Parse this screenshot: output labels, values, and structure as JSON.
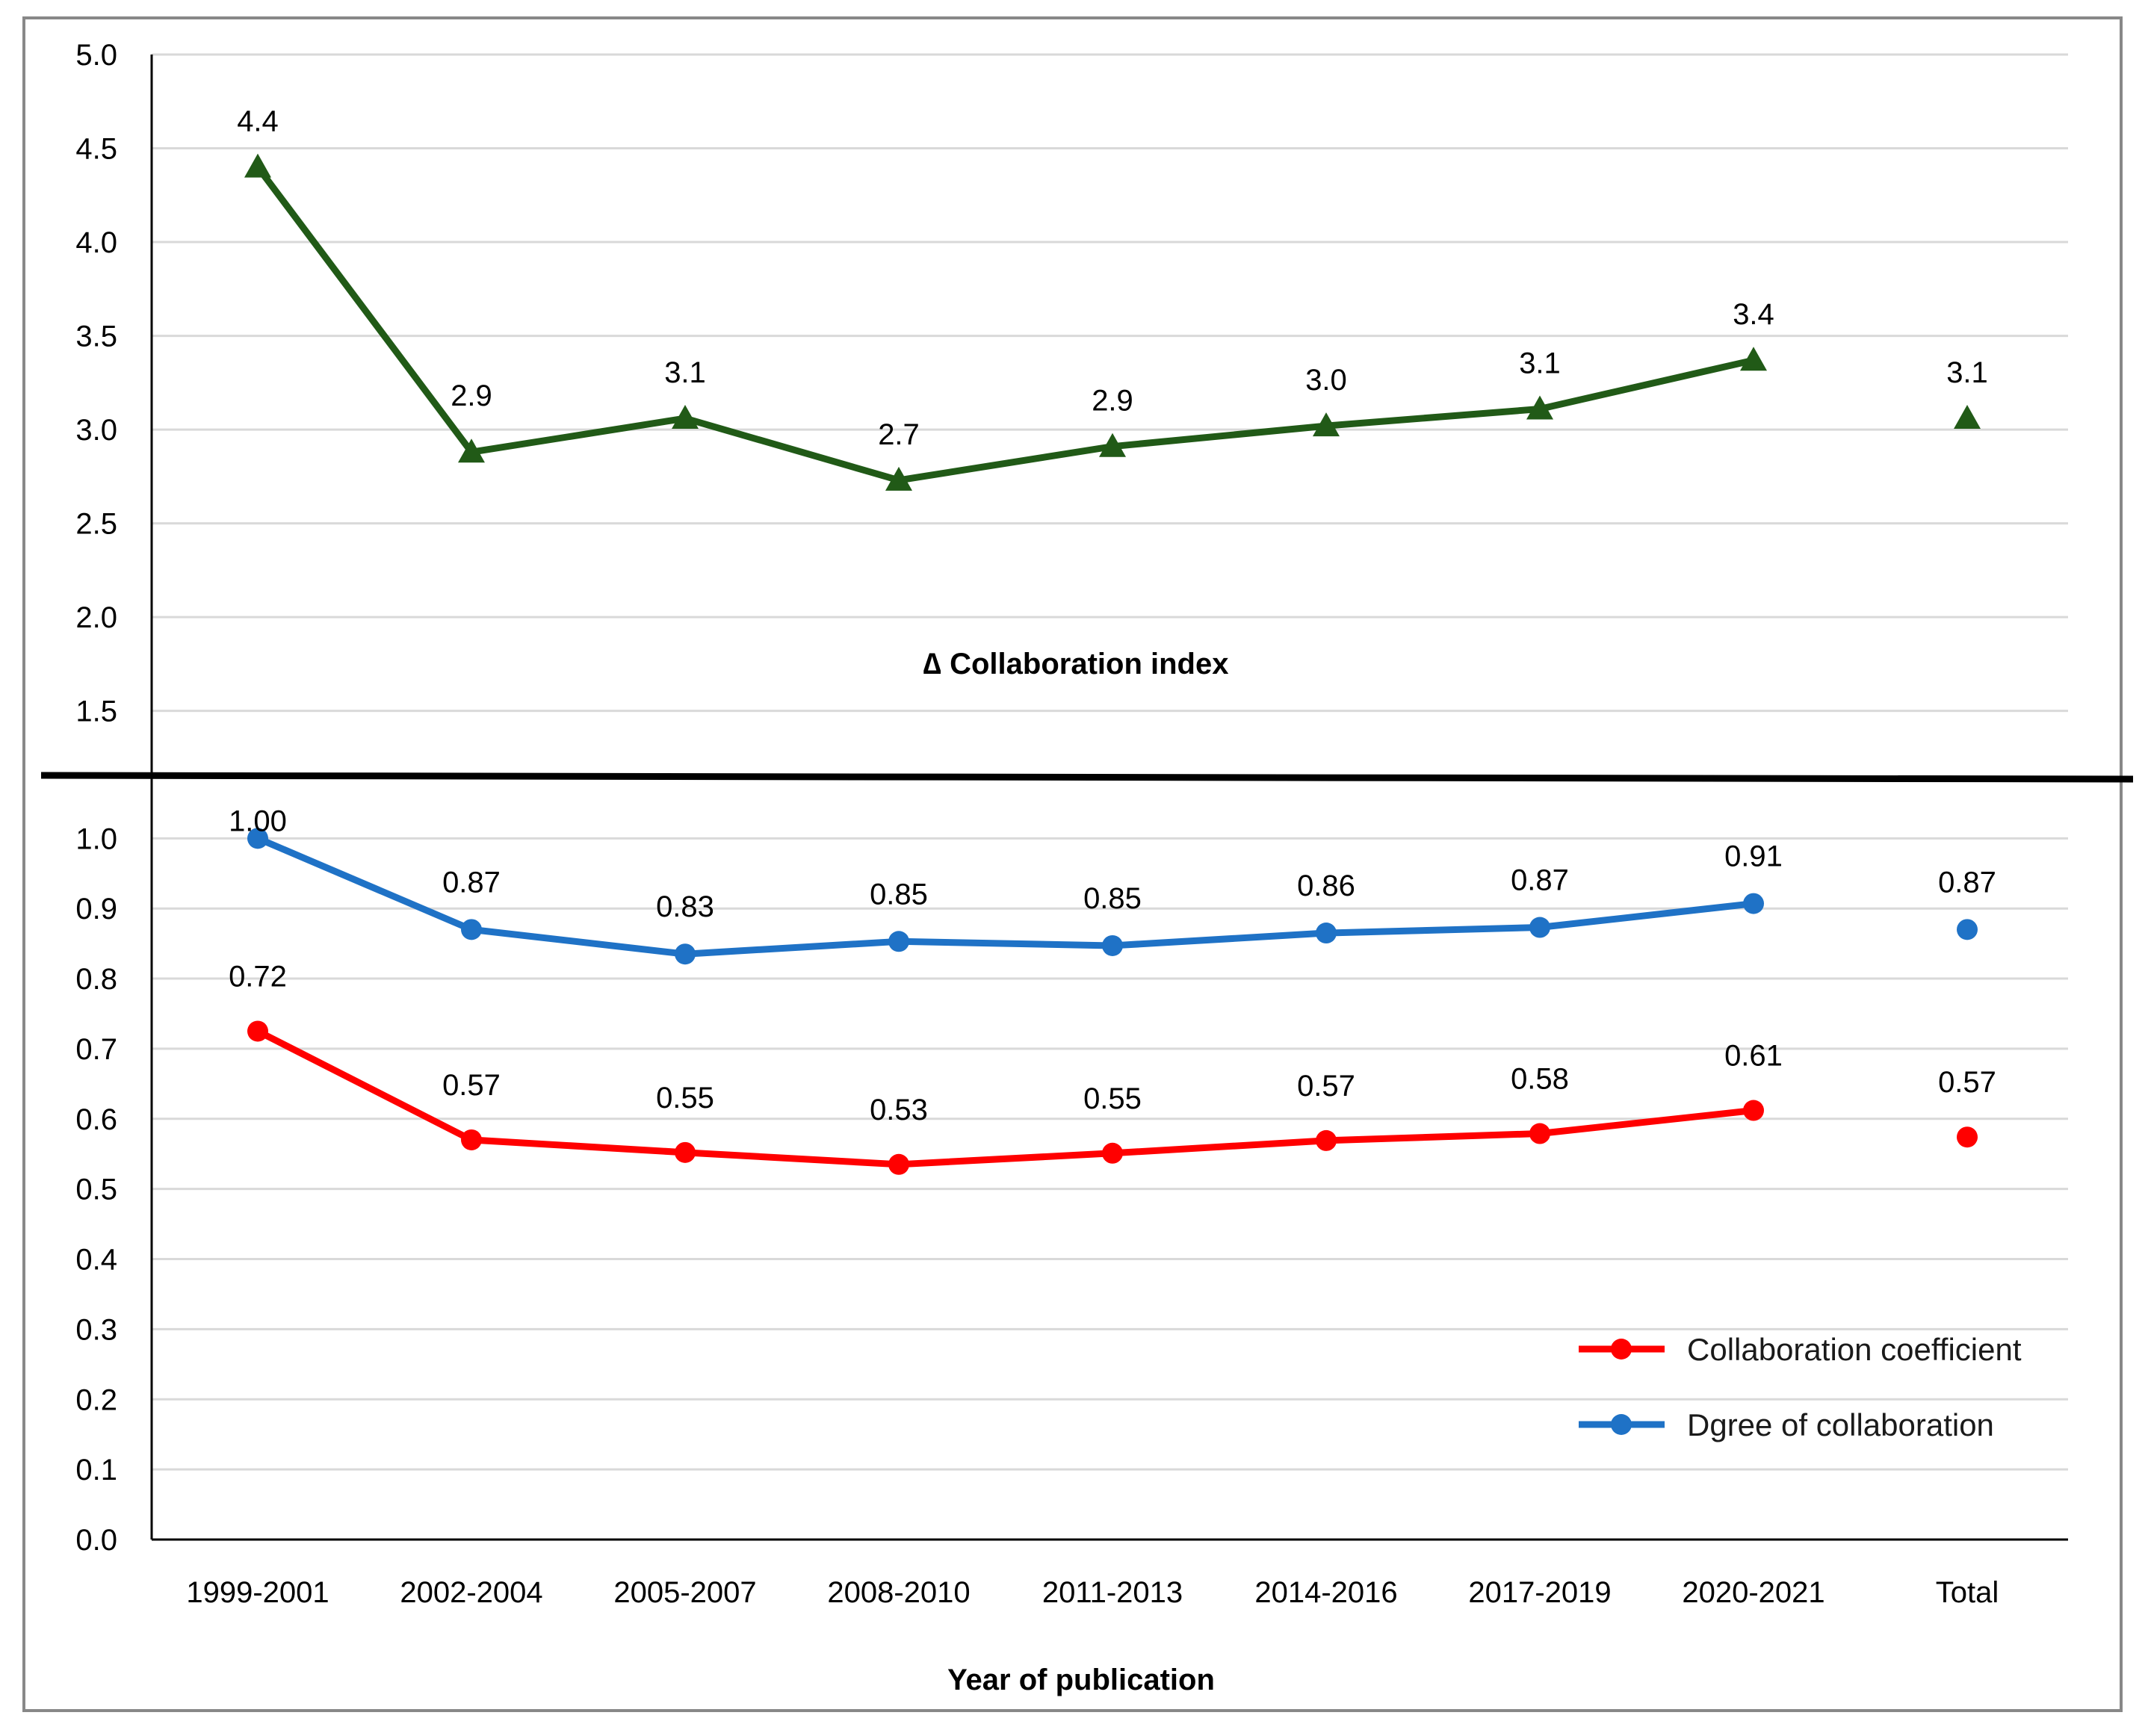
{
  "chart_data": {
    "type": "line",
    "categories": [
      "1999-2001",
      "2002-2004",
      "2005-2007",
      "2008-2010",
      "2011-2013",
      "2014-2016",
      "2017-2019",
      "2020-2021",
      "Total"
    ],
    "xlabel": "Year of publication",
    "panels": [
      {
        "name": "top",
        "title": "∆ Collaboration index",
        "ylim": [
          1.2,
          5.0
        ],
        "yticks": [
          "1.5",
          "2.0",
          "2.5",
          "3.0",
          "3.5",
          "4.0",
          "4.5",
          "5.0"
        ],
        "series": [
          {
            "name": "Collaboration index",
            "color": "#215a17",
            "marker": "triangle",
            "values": [
              4.4,
              2.88,
              3.06,
              2.73,
              2.91,
              3.02,
              3.11,
              3.37,
              3.06
            ],
            "labels": [
              "4.4",
              "2.9",
              "3.1",
              "2.7",
              "2.9",
              "3.0",
              "3.1",
              "3.4",
              "3.1"
            ],
            "total_unconnected": true
          }
        ]
      },
      {
        "name": "bottom",
        "ylim": [
          0.0,
          1.06
        ],
        "yticks": [
          "0.0",
          "0.1",
          "0.2",
          "0.3",
          "0.4",
          "0.5",
          "0.6",
          "0.7",
          "0.8",
          "0.9",
          "1.0"
        ],
        "series": [
          {
            "name": "Dgree of collaboration",
            "color": "#1f72c6",
            "marker": "circle",
            "values": [
              1.0,
              0.87,
              0.835,
              0.853,
              0.847,
              0.865,
              0.873,
              0.907,
              0.87
            ],
            "labels": [
              "1.00",
              "0.87",
              "0.83",
              "0.85",
              "0.85",
              "0.86",
              "0.87",
              "0.91",
              "0.87"
            ],
            "total_unconnected": true
          },
          {
            "name": "Collaboration coefficient",
            "color": "#ff0000",
            "marker": "circle",
            "values": [
              0.725,
              0.57,
              0.552,
              0.535,
              0.551,
              0.569,
              0.579,
              0.612,
              0.574
            ],
            "labels": [
              "0.72",
              "0.57",
              "0.55",
              "0.53",
              "0.55",
              "0.57",
              "0.58",
              "0.61",
              "0.57"
            ],
            "total_unconnected": true
          }
        ]
      }
    ],
    "legend": {
      "position": "bottom-right",
      "entries": [
        "Collaboration coefficient",
        "Dgree of collaboration"
      ]
    },
    "grid": true
  }
}
